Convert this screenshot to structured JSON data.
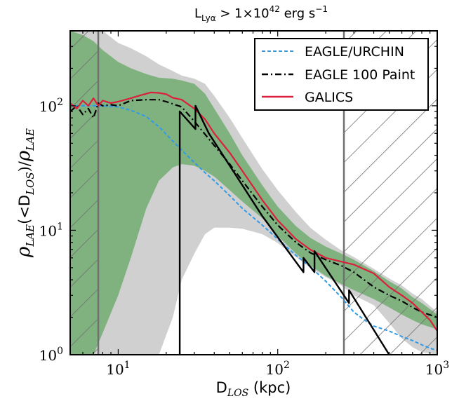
{
  "chart_data": {
    "type": "line",
    "title": "L_Lyα > 1×10^42 erg s^−1",
    "title_parts": {
      "L": "L",
      "sub": "Lyα",
      "gt": " > 1×10",
      "exp": "42",
      "unit": " erg s",
      "unit_exp": "−1"
    },
    "xlabel": {
      "main": "D",
      "sub": "LOS",
      "tail": " (kpc)"
    },
    "ylabel": {
      "rho1": "ρ",
      "sub1": "LAE",
      "mid": "(<D",
      "sub2": "LOS",
      "close": ")/",
      "rho2": "ρ",
      "sub3": "LAE"
    },
    "x_scale": "log",
    "y_scale": "log",
    "xlim": [
      5,
      1000
    ],
    "ylim": [
      1,
      400
    ],
    "x_ticks": [
      {
        "base": "10",
        "exp": "1",
        "value": 10
      },
      {
        "base": "10",
        "exp": "2",
        "value": 100
      },
      {
        "base": "10",
        "exp": "3",
        "value": 1000
      }
    ],
    "y_ticks": [
      {
        "base": "10",
        "exp": "0",
        "value": 1
      },
      {
        "base": "10",
        "exp": "1",
        "value": 10
      },
      {
        "base": "10",
        "exp": "2",
        "value": 100
      }
    ],
    "hatched_regions": [
      [
        5,
        7.5
      ],
      [
        260,
        1000
      ]
    ],
    "legend": {
      "position": "top-right"
    },
    "colors": {
      "grey_band": "#d0d0d0",
      "green_band": "#7fb27f",
      "urchin": "#2f9be8",
      "paint": "#000000",
      "galics": "#dc1f3d",
      "hatch_edge": "#707070"
    },
    "series": [
      {
        "name": "EAGLE/URCHIN",
        "style": "dashed",
        "x": [
          5,
          6,
          7,
          8,
          10,
          12,
          15,
          18,
          22,
          26,
          30,
          35,
          40,
          50,
          60,
          80,
          100,
          130,
          160,
          200,
          250,
          300,
          350,
          400,
          500,
          600,
          700,
          800,
          900,
          1000
        ],
        "y": [
          100,
          100,
          100,
          100,
          98,
          92,
          82,
          68,
          52,
          42,
          35,
          29,
          25,
          19,
          15,
          11,
          8.5,
          6.3,
          5.1,
          3.9,
          2.9,
          2.2,
          1.9,
          1.7,
          1.55,
          1.4,
          1.3,
          1.2,
          1.13,
          1.08
        ]
      },
      {
        "name": "EAGLE 100 Paint",
        "style": "dashdot",
        "x": [
          5,
          5.5,
          6,
          6.5,
          7,
          7.5,
          8,
          9,
          10,
          12,
          15,
          18,
          20,
          25,
          30,
          40,
          50,
          60,
          80,
          100,
          130,
          160,
          200,
          250,
          300,
          400,
          500,
          600,
          700,
          800,
          1000
        ],
        "y": [
          90,
          100,
          85,
          95,
          80,
          105,
          100,
          102,
          100,
          110,
          112,
          112,
          108,
          98,
          75,
          48,
          34,
          25,
          15.5,
          11,
          8,
          6.6,
          5.8,
          5.2,
          4.6,
          3.5,
          3.0,
          2.7,
          2.4,
          2.2,
          2.0
        ]
      },
      {
        "name": "GALICS",
        "style": "solid",
        "x": [
          5,
          5.5,
          6,
          6.5,
          7,
          7.5,
          8,
          9,
          10,
          12,
          14,
          16,
          18,
          20,
          22,
          25,
          30,
          35,
          40,
          50,
          60,
          80,
          100,
          130,
          160,
          200,
          250,
          300,
          400,
          500,
          600,
          700,
          800,
          900,
          1000
        ],
        "y": [
          105,
          95,
          110,
          100,
          115,
          100,
          110,
          105,
          108,
          115,
          122,
          128,
          127,
          124,
          116,
          112,
          95,
          78,
          60,
          42,
          30,
          17.5,
          12,
          8.5,
          7,
          6,
          5.6,
          5.3,
          4.5,
          3.5,
          3.0,
          2.6,
          2.2,
          1.9,
          1.55
        ]
      },
      {
        "name": "",
        "style": "solid-thick",
        "x": [
          24.3,
          24.3,
          30.5,
          30.5,
          37,
          80,
          145,
          145,
          170,
          170,
          280,
          280,
          500
        ],
        "y": [
          0.5,
          90,
          65,
          100,
          60,
          13,
          4.6,
          6,
          4.6,
          6.8,
          2.6,
          3.3,
          1
        ]
      }
    ],
    "bands": [
      {
        "name": "grey",
        "x": [
          5,
          6,
          7,
          8,
          10,
          12,
          15,
          18,
          22,
          25,
          30,
          35,
          40,
          50,
          60,
          80,
          100,
          130,
          160,
          200,
          250,
          300,
          400,
          500,
          600,
          700,
          800,
          1000
        ],
        "upper": [
          400,
          400,
          400,
          400,
          320,
          290,
          250,
          215,
          190,
          175,
          165,
          150,
          120,
          80,
          55,
          31,
          21,
          14,
          10.5,
          8.4,
          6.9,
          6.1,
          4.9,
          4.1,
          3.6,
          3.1,
          2.8,
          2.2
        ],
        "lower": [
          1,
          1,
          1,
          1,
          1,
          1,
          1,
          1,
          2,
          4,
          6.5,
          9.3,
          10.5,
          10.5,
          10.3,
          9.3,
          7.9,
          6.1,
          5,
          4.2,
          3.6,
          3.0,
          2.5,
          1.8,
          1.35,
          1.15,
          1.05,
          1
        ]
      },
      {
        "name": "green",
        "x": [
          5,
          6,
          7,
          8,
          10,
          12,
          15,
          18,
          22,
          25,
          30,
          35,
          40,
          50,
          60,
          80,
          100,
          130,
          160,
          200,
          250,
          300,
          400,
          500,
          600,
          700,
          800,
          1000
        ],
        "upper": [
          400,
          370,
          330,
          280,
          225,
          200,
          180,
          168,
          165,
          160,
          150,
          125,
          95,
          60,
          40,
          23,
          15.5,
          10.8,
          8.7,
          7.4,
          6.5,
          5.8,
          4.7,
          3.9,
          3.4,
          2.9,
          2.6,
          2.1
        ],
        "lower": [
          1,
          1,
          1,
          1.5,
          3,
          6,
          15,
          25,
          32,
          34,
          33,
          30,
          27,
          21,
          17,
          12.5,
          9,
          6.5,
          5.2,
          4.3,
          3.7,
          3.3,
          2.8,
          2.4,
          2.1,
          1.9,
          1.75,
          1.6
        ]
      }
    ]
  }
}
